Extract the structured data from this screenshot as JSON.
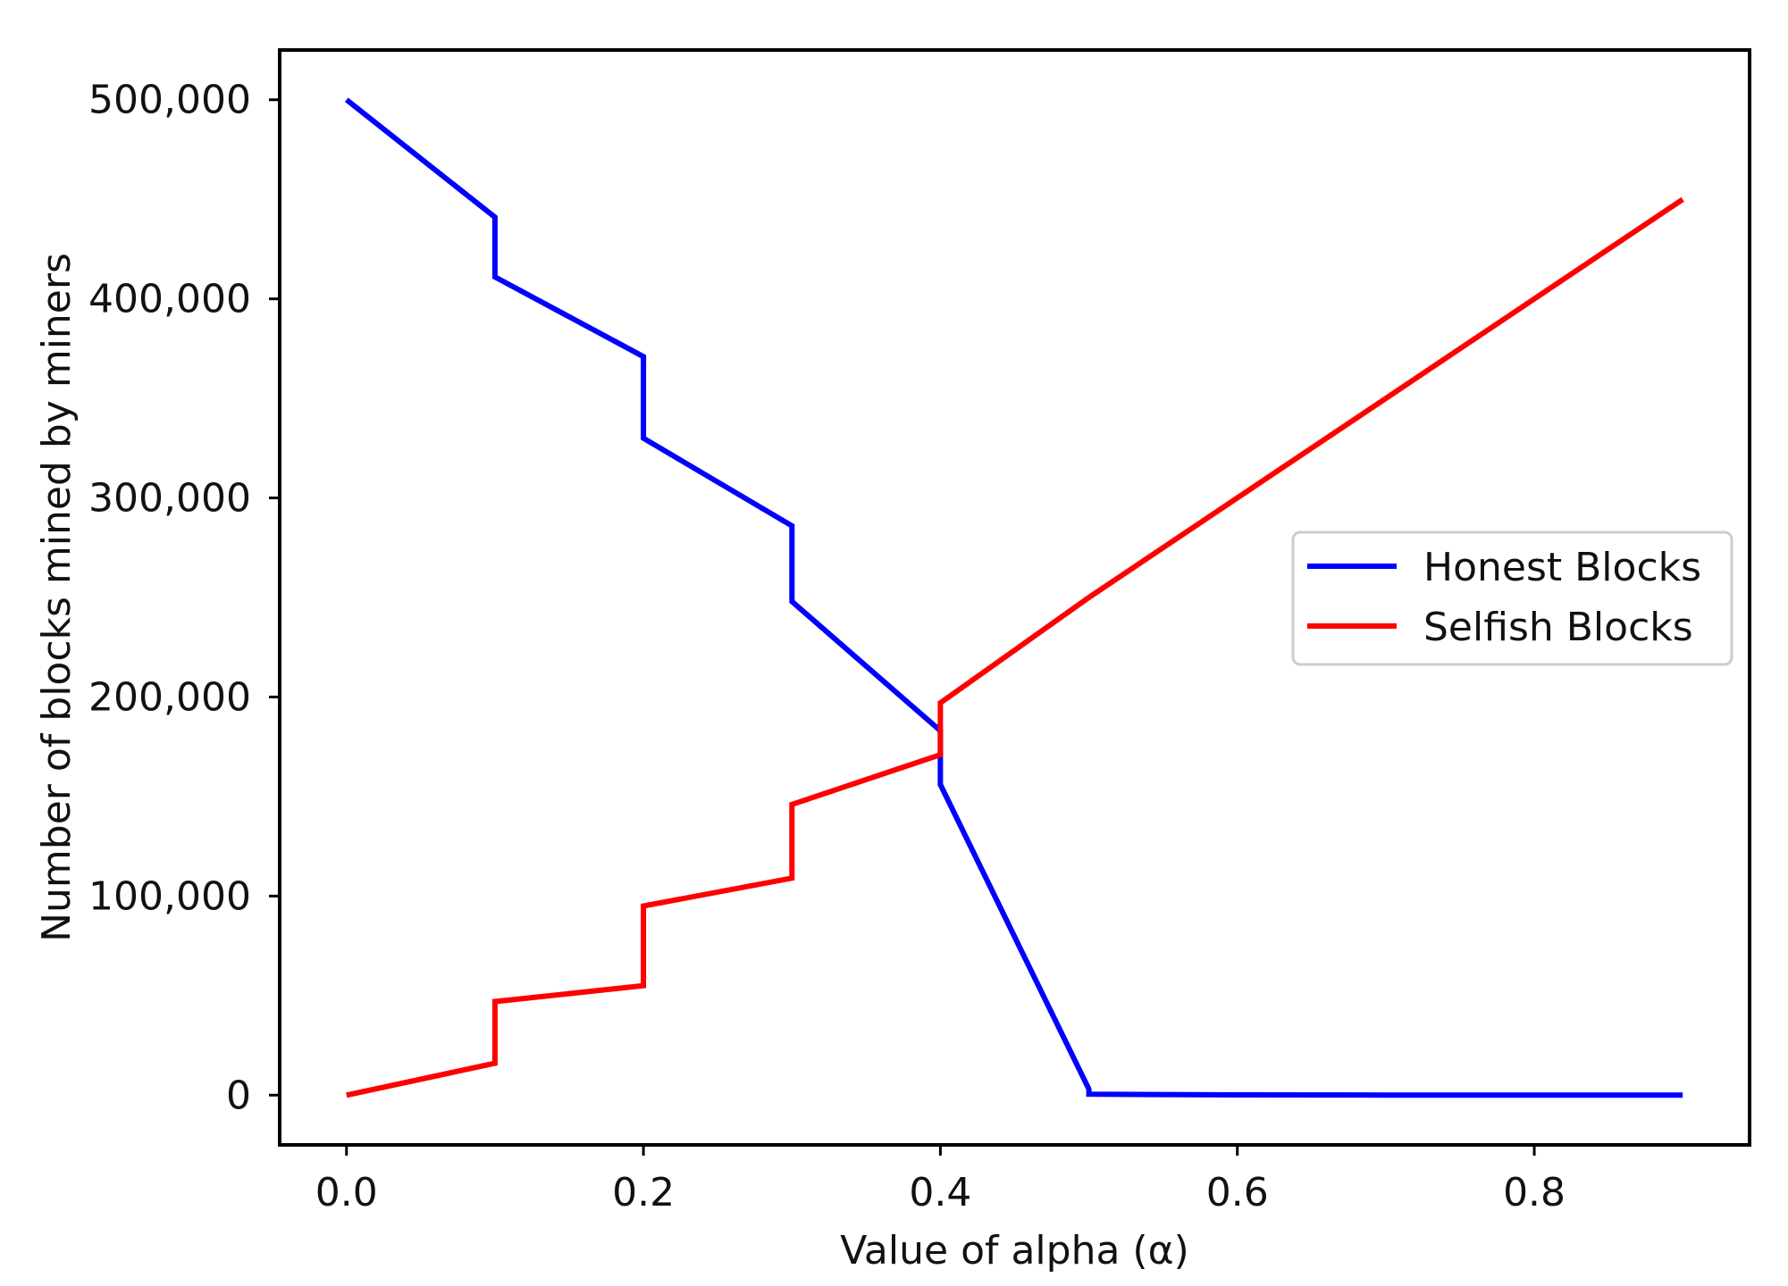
{
  "chart_data": {
    "type": "line",
    "title": "",
    "xlabel": "Value of alpha (α)",
    "ylabel": "Number of blocks mined by miners",
    "xlim": [
      -0.045,
      0.945
    ],
    "ylim": [
      -25000,
      525000
    ],
    "xticks": [
      0.0,
      0.2,
      0.4,
      0.6,
      0.8
    ],
    "xtick_labels": [
      "0.0",
      "0.2",
      "0.4",
      "0.6",
      "0.8"
    ],
    "yticks": [
      0,
      100000,
      200000,
      300000,
      400000,
      500000
    ],
    "ytick_labels": [
      "0",
      "100,000",
      "200,000",
      "300,000",
      "400,000",
      "500,000"
    ],
    "grid": false,
    "legend_position": "center-right",
    "series": [
      {
        "name": "Honest Blocks",
        "color": "#0000ff",
        "points": [
          [
            0.0,
            500000
          ],
          [
            0.1,
            441000
          ],
          [
            0.1,
            411000
          ],
          [
            0.2,
            371000
          ],
          [
            0.2,
            330000
          ],
          [
            0.3,
            286000
          ],
          [
            0.3,
            248000
          ],
          [
            0.4,
            183000
          ],
          [
            0.4,
            156000
          ],
          [
            0.5,
            3000
          ],
          [
            0.5,
            500
          ],
          [
            0.6,
            100
          ],
          [
            0.7,
            50
          ],
          [
            0.8,
            20
          ],
          [
            0.9,
            0
          ]
        ]
      },
      {
        "name": "Selfish Blocks",
        "color": "#ff0000",
        "points": [
          [
            0.0,
            0
          ],
          [
            0.1,
            16000
          ],
          [
            0.1,
            47000
          ],
          [
            0.2,
            55000
          ],
          [
            0.2,
            95000
          ],
          [
            0.3,
            109000
          ],
          [
            0.3,
            146000
          ],
          [
            0.4,
            171000
          ],
          [
            0.4,
            197000
          ],
          [
            0.5,
            250000
          ],
          [
            0.6,
            300000
          ],
          [
            0.7,
            350000
          ],
          [
            0.8,
            400000
          ],
          [
            0.9,
            450000
          ]
        ]
      }
    ]
  }
}
